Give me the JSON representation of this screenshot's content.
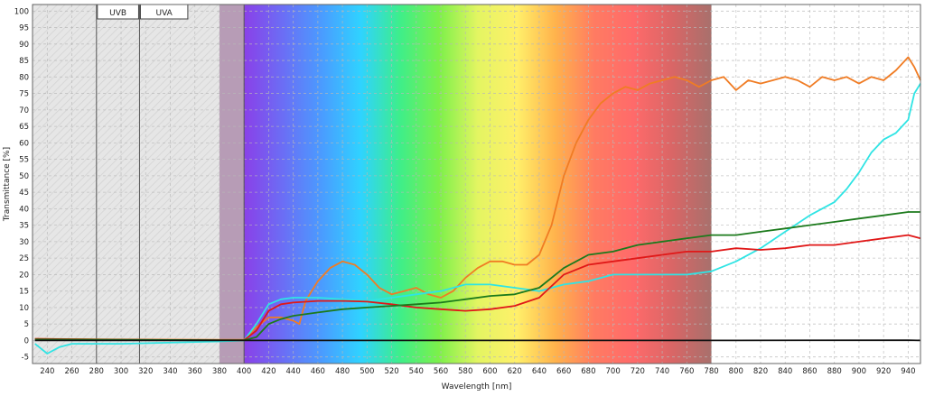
{
  "chart_data": {
    "type": "line",
    "title": "",
    "xlabel": "Wavelength [nm]",
    "ylabel": "Transmittance [%]",
    "xlim": [
      228,
      950
    ],
    "ylim": [
      -7,
      102
    ],
    "x_ticks": [
      240,
      260,
      280,
      300,
      320,
      340,
      360,
      380,
      400,
      420,
      440,
      460,
      480,
      500,
      520,
      540,
      560,
      580,
      600,
      620,
      640,
      660,
      680,
      700,
      720,
      740,
      760,
      780,
      800,
      820,
      840,
      860,
      880,
      900,
      920,
      940
    ],
    "y_ticks": [
      -5,
      0,
      5,
      10,
      15,
      20,
      25,
      30,
      35,
      40,
      45,
      50,
      55,
      60,
      65,
      70,
      75,
      80,
      85,
      90,
      95,
      100
    ],
    "grid": true,
    "legend": "none",
    "region_labels": [
      {
        "text": "UVB",
        "x_from": 280,
        "x_to": 315
      },
      {
        "text": "UVA",
        "x_from": 315,
        "x_to": 355
      }
    ],
    "band_markers": [
      280,
      315,
      400
    ],
    "highlight_range": [
      380,
      400
    ],
    "spectrum_range": [
      400,
      780
    ],
    "colors": {
      "uv_hatch": "#e4e4e4",
      "highlight": "#b79cb6",
      "spectrum_stops": [
        "#8a40e8",
        "#6b6ef5",
        "#4a9cff",
        "#2fd3ff",
        "#3eee8a",
        "#7cf04a",
        "#e3f562",
        "#fff06a",
        "#ffb24c",
        "#ff7b62",
        "#ff6a6a",
        "#d96666",
        "#a8706c"
      ]
    },
    "series": [
      {
        "color": "#f07c24",
        "x": [
          230,
          300,
          380,
          400,
          410,
          420,
          430,
          440,
          445,
          450,
          460,
          470,
          480,
          490,
          500,
          510,
          520,
          530,
          540,
          550,
          560,
          570,
          580,
          590,
          600,
          610,
          620,
          630,
          640,
          650,
          660,
          670,
          680,
          690,
          700,
          710,
          720,
          730,
          740,
          750,
          760,
          770,
          780,
          790,
          800,
          810,
          820,
          830,
          840,
          850,
          860,
          870,
          880,
          890,
          900,
          910,
          920,
          930,
          940,
          945,
          950
        ],
        "y": [
          0.5,
          0.3,
          0.2,
          0.2,
          4,
          7,
          7,
          6,
          5,
          12,
          18,
          22,
          24,
          23,
          20,
          16,
          14,
          15,
          16,
          14,
          13,
          15,
          19,
          22,
          24,
          24,
          23,
          23,
          26,
          35,
          50,
          60,
          67,
          72,
          75,
          77,
          76,
          78,
          79,
          80,
          79,
          77,
          79,
          80,
          76,
          79,
          78,
          79,
          80,
          79,
          77,
          80,
          79,
          80,
          78,
          80,
          79,
          82,
          86,
          83,
          79
        ]
      },
      {
        "color": "#2fe4e4",
        "x": [
          230,
          240,
          250,
          260,
          300,
          380,
          400,
          410,
          420,
          430,
          440,
          460,
          480,
          500,
          520,
          540,
          560,
          580,
          600,
          620,
          640,
          660,
          680,
          700,
          720,
          740,
          760,
          780,
          800,
          820,
          840,
          860,
          880,
          890,
          900,
          910,
          920,
          930,
          940,
          945,
          950
        ],
        "y": [
          -1,
          -4,
          -2,
          -1,
          -1,
          -0.3,
          0,
          5,
          11,
          12.5,
          13,
          13,
          12.5,
          12,
          13,
          14,
          15,
          17,
          17,
          16,
          15,
          17,
          18,
          20,
          20,
          20,
          20,
          21,
          24,
          28,
          33,
          38,
          42,
          46,
          51,
          57,
          61,
          63,
          67,
          75,
          78
        ]
      },
      {
        "color": "#e01818",
        "x": [
          230,
          300,
          380,
          400,
          410,
          420,
          430,
          440,
          460,
          480,
          500,
          520,
          540,
          560,
          580,
          600,
          620,
          640,
          660,
          680,
          700,
          720,
          740,
          760,
          780,
          800,
          820,
          840,
          860,
          880,
          900,
          920,
          940,
          950
        ],
        "y": [
          0.5,
          0.2,
          0.1,
          0.1,
          3,
          9,
          11,
          11.5,
          12,
          12,
          11.8,
          11,
          10,
          9.5,
          9,
          9.5,
          10.5,
          13,
          20,
          23,
          24,
          25,
          26,
          27,
          27,
          28,
          27.5,
          28,
          29,
          29,
          30,
          31,
          32,
          31
        ]
      },
      {
        "color": "#1c7a1c",
        "x": [
          230,
          300,
          380,
          400,
          410,
          420,
          430,
          440,
          460,
          480,
          500,
          520,
          540,
          560,
          580,
          600,
          620,
          640,
          660,
          680,
          700,
          720,
          740,
          760,
          780,
          800,
          820,
          840,
          860,
          880,
          900,
          920,
          940,
          950
        ],
        "y": [
          0.3,
          0.2,
          0.1,
          0.1,
          1,
          5,
          6.5,
          7.5,
          8.5,
          9.5,
          10,
          10.5,
          11,
          11.5,
          12.5,
          13.5,
          14,
          16,
          22,
          26,
          27,
          29,
          30,
          31,
          32,
          32,
          33,
          34,
          35,
          36,
          37,
          38,
          39,
          39
        ]
      },
      {
        "color": "#111111",
        "x": [
          230,
          400,
          600,
          800,
          940,
          950
        ],
        "y": [
          0,
          0,
          0,
          0,
          0.1,
          0
        ]
      }
    ]
  }
}
